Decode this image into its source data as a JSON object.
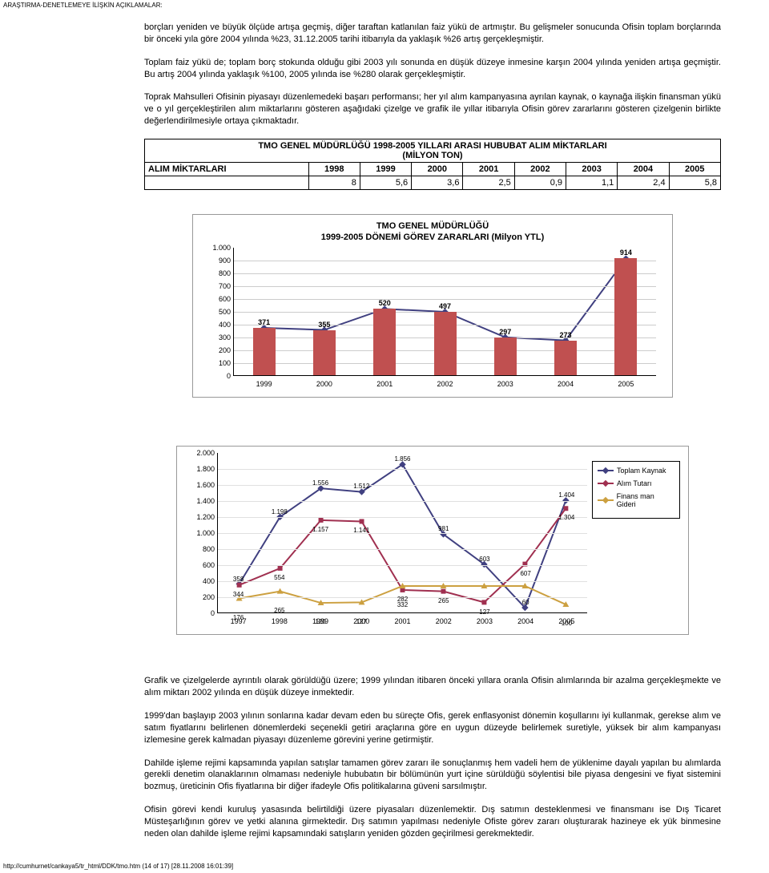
{
  "header_note": "ARAŞTIRMA-DENETLEMEYE İLİŞKİN AÇIKLAMALAR:",
  "paragraphs": {
    "p1": "borçları yeniden ve büyük ölçüde artışa geçmiş, diğer taraftan katlanılan faiz yükü de artmıştır. Bu gelişmeler sonucunda Ofisin toplam borçlarında bir önceki yıla göre 2004 yılında %23, 31.12.2005 tarihi itibarıyla da yaklaşık %26 artış gerçekleşmiştir.",
    "p2": "Toplam faiz yükü de; toplam borç stokunda olduğu gibi 2003 yılı sonunda en düşük düzeye inmesine karşın 2004 yılında yeniden artışa geçmiştir. Bu artış 2004 yılında yaklaşık %100, 2005 yılında ise %280 olarak gerçekleşmiştir.",
    "p3": "Toprak Mahsulleri Ofisinin piyasayı düzenlemedeki başarı performansı; her yıl alım kampanyasına ayrılan kaynak, o kaynağa ilişkin finansman yükü ve o yıl gerçekleştirilen alım miktarlarını gösteren aşağıdaki çizelge ve grafik ile yıllar itibarıyla Ofisin görev zararlarını gösteren çizelgenin birlikte değerlendirilmesiyle ortaya çıkmaktadır.",
    "p4": "Grafik ve çizelgelerde ayrıntılı olarak görüldüğü üzere; 1999 yılından itibaren önceki yıllara oranla Ofisin alımlarında bir azalma gerçekleşmekte ve alım miktarı 2002 yılında en düşük düzeye inmektedir.",
    "p5": "1999'dan başlayıp 2003 yılının sonlarına kadar devam eden bu süreçte Ofis, gerek enflasyonist dönemin koşullarını iyi kullanmak, gerekse alım ve satım fiyatlarını belirlenen dönemlerdeki seçenekli getiri araçlarına göre en uygun düzeyde belirlemek suretiyle, yüksek bir alım kampanyası izlemesine gerek kalmadan piyasayı düzenleme görevini yerine getirmiştir.",
    "p6": "Dahilde işleme rejimi kapsamında yapılan satışlar tamamen görev zararı ile sonuçlanmış hem vadeli hem de yüklenime dayalı yapılan bu alımlarda gerekli denetim olanaklarının olmaması nedeniyle hububatın bir bölümünün yurt içine sürüldüğü söylentisi bile piyasa dengesini ve fiyat sistemini bozmuş, üreticinin Ofis fiyatlarına bir diğer ifadeyle Ofis politikalarına güveni sarsılmıştır.",
    "p7": "Ofisin görevi kendi kuruluş yasasında belirtildiği üzere piyasaları düzenlemektir. Dış satımın desteklenmesi ve finansmanı ise Dış Ticaret Müsteşarlığının görev ve yetki alanına girmektedir. Dış satımın yapılması nedeniyle Ofiste görev zararı oluşturarak hazineye ek yük binmesine neden olan dahilde işleme rejimi kapsamındaki satışların yeniden gözden geçirilmesi gerekmektedir."
  },
  "table": {
    "title_line1": "TMO GENEL MÜDÜRLÜĞÜ 1998-2005 YILLARI ARASI HUBUBAT ALIM MİKTARLARI",
    "title_line2": "(MİLYON TON)",
    "row_label": "ALIM MİKTARLARI",
    "years": [
      "1998",
      "1999",
      "2000",
      "2001",
      "2002",
      "2003",
      "2004",
      "2005"
    ],
    "values": [
      "8",
      "5,6",
      "3,6",
      "2,5",
      "0,9",
      "1,1",
      "2,4",
      "5,8"
    ]
  },
  "chart1": {
    "title_line1": "TMO GENEL MÜDÜRLÜĞÜ",
    "title_line2": "1999-2005 DÖNEMİ GÖREV ZARARLARI (Milyon YTL)",
    "y_max": 1000,
    "y_ticks": [
      0,
      100,
      200,
      300,
      400,
      500,
      600,
      700,
      800,
      900,
      1000
    ],
    "y_tick_labels": [
      "0",
      "100",
      "200",
      "300",
      "400",
      "500",
      "600",
      "700",
      "800",
      "900",
      "1.000"
    ],
    "categories": [
      "1999",
      "2000",
      "2001",
      "2002",
      "2003",
      "2004",
      "2005"
    ],
    "values": [
      371,
      355,
      520,
      497,
      297,
      273,
      914
    ],
    "value_labels": [
      "371",
      "355",
      "520",
      "497",
      "297",
      "273",
      "914"
    ],
    "bar_color": "#c05050",
    "line_color": "#404080",
    "grid_color": "#cccccc"
  },
  "chart2": {
    "y_max": 2000,
    "y_ticks": [
      0,
      200,
      400,
      600,
      800,
      1000,
      1200,
      1400,
      1600,
      1800,
      2000
    ],
    "y_tick_labels": [
      "0",
      "200",
      "400",
      "600",
      "800",
      "1.000",
      "1.200",
      "1.400",
      "1.600",
      "1.800",
      "2.000"
    ],
    "categories": [
      "1997",
      "1998",
      "1999",
      "2000",
      "2001",
      "2002",
      "2003",
      "2004",
      "2005"
    ],
    "series": [
      {
        "name": "Toplam Kaynak",
        "color": "#404080",
        "marker": "diamond",
        "values": [
          358,
          1198,
          1556,
          1512,
          1856,
          981,
          603,
          60,
          1404
        ],
        "labels": [
          "358",
          "1.198",
          "1.556",
          "1.512",
          "1.856",
          "981",
          "603",
          "60",
          "1.404"
        ]
      },
      {
        "name": "Alım Tutarı",
        "color": "#a03050",
        "marker": "square",
        "values": [
          344,
          554,
          1157,
          1141,
          282,
          265,
          127,
          607,
          1304
        ],
        "labels": [
          "344",
          "554",
          "1.157",
          "1.141",
          "282",
          "265",
          "127",
          "607",
          "1.304"
        ]
      },
      {
        "name": "Finansman Gideri",
        "color": "#cca040",
        "marker": "triangle",
        "values": [
          176,
          265,
          120,
          127,
          332,
          332,
          332,
          332,
          100
        ],
        "labels": [
          "176",
          "265",
          "120",
          "127",
          "332",
          "",
          "",
          "",
          "100"
        ]
      }
    ],
    "legend": [
      "Toplam Kaynak",
      "Alım Tutarı",
      "Finans man Gideri"
    ],
    "legend_colors": [
      "#404080",
      "#a03050",
      "#cca040"
    ],
    "grid_color": "#e0e0e0"
  },
  "footer": "http://cumhurnet/cankaya5/tr_html/DDK/tmo.htm (14 of 17) [28.11.2008 16:01:39]"
}
